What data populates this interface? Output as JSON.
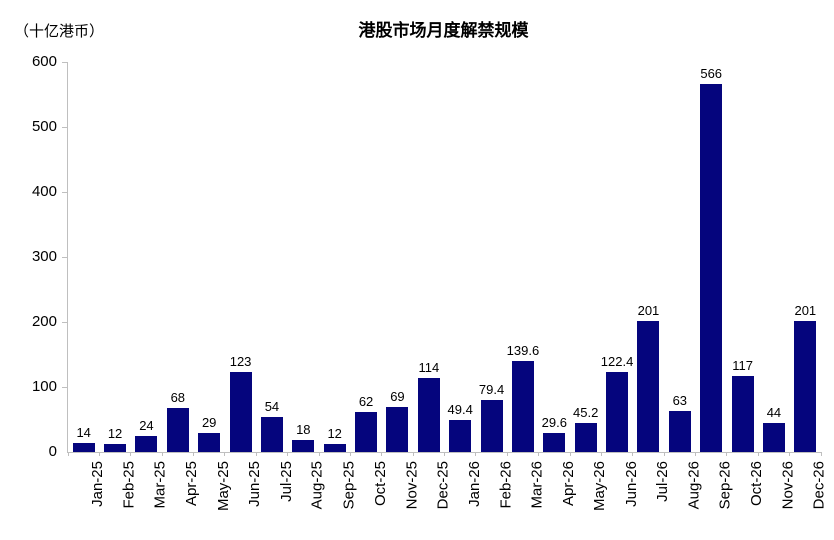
{
  "chart_data": {
    "type": "bar",
    "title": "港股市场月度解禁规模",
    "unit_label": "（十亿港币）",
    "categories": [
      "Jan-25",
      "Feb-25",
      "Mar-25",
      "Apr-25",
      "May-25",
      "Jun-25",
      "Jul-25",
      "Aug-25",
      "Sep-25",
      "Oct-25",
      "Nov-25",
      "Dec-25",
      "Jan-26",
      "Feb-26",
      "Mar-26",
      "Apr-26",
      "May-26",
      "Jun-26",
      "Jul-26",
      "Aug-26",
      "Sep-26",
      "Oct-26",
      "Nov-26",
      "Dec-26"
    ],
    "values": [
      14,
      12,
      24,
      68,
      29,
      123,
      54,
      18,
      12,
      62,
      69,
      114,
      49.4,
      79.4,
      139.6,
      29.6,
      45.2,
      122.4,
      201,
      63,
      566,
      117,
      44,
      201
    ],
    "value_labels": [
      "14",
      "12",
      "24",
      "68",
      "29",
      "123",
      "54",
      "18",
      "12",
      "62",
      "69",
      "114",
      "49.4",
      "79.4",
      "139.6",
      "29.6",
      "45.2",
      "122.4",
      "201",
      "63",
      "566",
      "117",
      "44",
      "201"
    ],
    "xlabel": "",
    "ylabel": "",
    "ylim": [
      0,
      600
    ],
    "ytick_step": 100,
    "ytick_labels": [
      "0",
      "100",
      "200",
      "300",
      "400",
      "500",
      "600"
    ],
    "grid": false,
    "legend_position": "none",
    "bar_color": "#05057d",
    "axis_color": "#bfbfbf",
    "text_color": "#000000"
  }
}
